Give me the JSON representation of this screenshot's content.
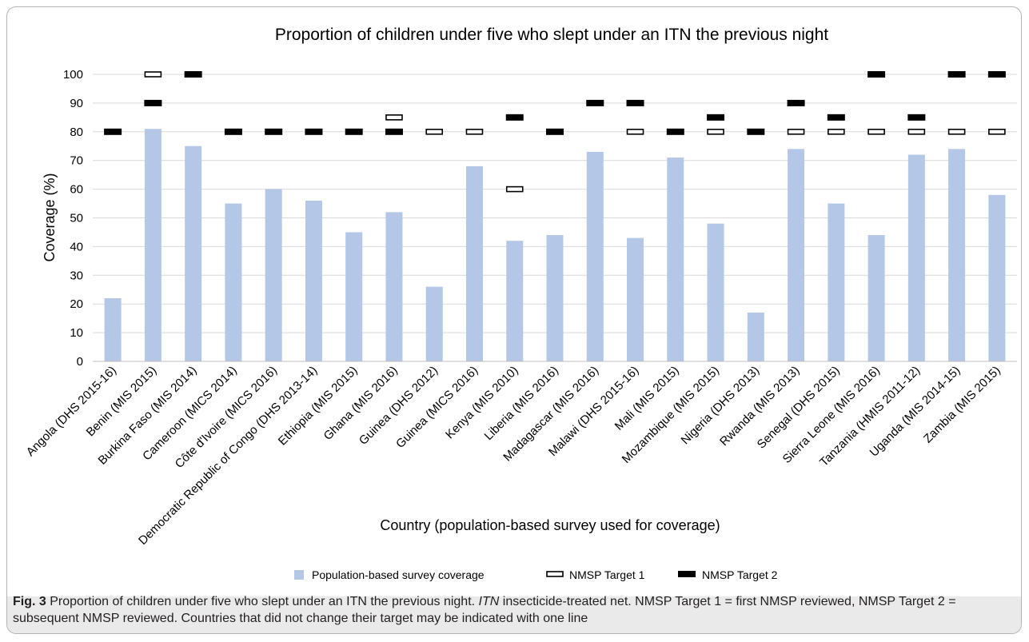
{
  "chart_data": {
    "type": "bar",
    "title": "Proportion of children under five who slept under an ITN the previous night",
    "xlabel": "Country (population-based survey used for coverage)",
    "ylabel": "Coverage (%)",
    "ylim": [
      0,
      100
    ],
    "yticks": [
      0,
      10,
      20,
      30,
      40,
      50,
      60,
      70,
      80,
      90,
      100
    ],
    "grid": true,
    "legend_position": "bottom",
    "categories": [
      "Angola (DHS 2015-16)",
      "Benin  (MIS 2015)",
      "Burkina Faso  (MIS 2014)",
      "Cameroon  (MICS 2014)",
      "Côte d'Ivoire  (MICS 2016)",
      "Democratic Republic of Congo  (DHS 2013-14)",
      "Ethiopia  (MIS 2015)",
      "Ghana  (MIS 2016)",
      "Guinea  (DHS 2012)",
      "Guinea  (MICS 2016)",
      "Kenya  (MIS 2010)",
      "Liberia  (MIS 2016)",
      "Madagascar  (MIS 2016)",
      "Malawi  (DHS 2015-16)",
      "Mali  (MIS 2015)",
      "Mozambique  (MIS 2015)",
      "Nigeria  (DHS 2013)",
      "Rwanda  (MIS 2013)",
      "Senegal  (DHS 2015)",
      "Sierra Leone  (MIS 2016)",
      "Tanzania  (HMIS 2011-12)",
      "Uganda  (MIS 2014-15)",
      "Zambia  (MIS 2015)"
    ],
    "series": [
      {
        "name": "Population-based survey coverage",
        "kind": "bar",
        "color": "#b4c7e7",
        "values": [
          22,
          81,
          75,
          55,
          60,
          56,
          45,
          52,
          26,
          68,
          42,
          44,
          73,
          43,
          71,
          48,
          17,
          74,
          55,
          44,
          72,
          74,
          58
        ]
      },
      {
        "name": "NMSP Target 1",
        "kind": "marker-hollow",
        "color": "#000000",
        "values": [
          null,
          100,
          null,
          null,
          null,
          null,
          null,
          85,
          80,
          80,
          60,
          null,
          null,
          80,
          null,
          80,
          null,
          80,
          80,
          80,
          80,
          80,
          80
        ]
      },
      {
        "name": "NMSP Target 2",
        "kind": "marker-solid",
        "color": "#000000",
        "values": [
          80,
          90,
          100,
          80,
          80,
          80,
          80,
          80,
          null,
          null,
          85,
          80,
          90,
          90,
          80,
          85,
          80,
          90,
          85,
          100,
          85,
          100,
          100
        ]
      }
    ]
  },
  "caption": {
    "fig_label": "Fig. 3",
    "text_1": "  Proportion of children under five who slept under an ITN the previous night. ",
    "abbr": "ITN",
    "text_2": " insecticide-treated net. NMSP Target 1 = first NMSP reviewed, NMSP Target 2 = subsequent NMSP reviewed. Countries that did not change their target may be indicated with one line"
  }
}
